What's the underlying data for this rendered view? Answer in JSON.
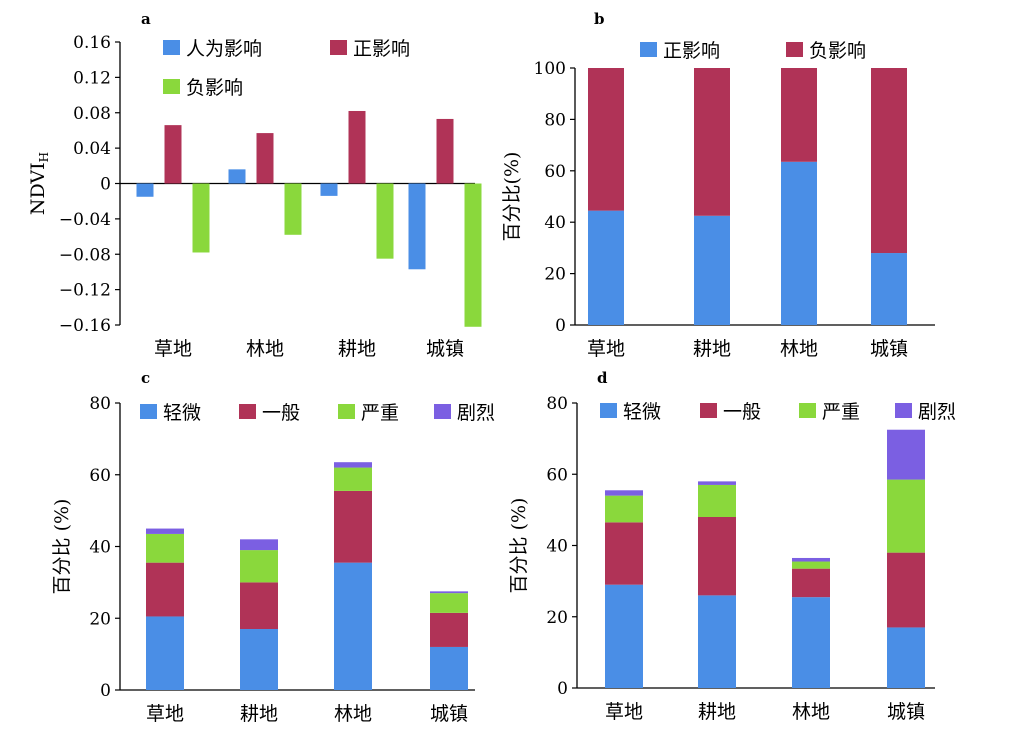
{
  "chart_data": [
    {
      "panel": "a",
      "type": "bar",
      "categories": [
        "草地",
        "林地",
        "耕地",
        "城镇"
      ],
      "series": [
        {
          "name": "人为影响",
          "color": "#4a8ee6",
          "values": [
            -0.015,
            0.016,
            -0.014,
            -0.097
          ]
        },
        {
          "name": "正影响",
          "color": "#b03357",
          "values": [
            0.066,
            0.057,
            0.082,
            0.073
          ]
        },
        {
          "name": "负影响",
          "color": "#8ad83c",
          "values": [
            -0.078,
            -0.058,
            -0.085,
            -0.162
          ]
        }
      ],
      "ylabel": "NDVI",
      "ylabel_sub": "H",
      "ylim": [
        -0.16,
        0.16
      ],
      "yticks": [
        "0.16",
        "0.12",
        "0.08",
        "0.04",
        "0",
        "−0.04",
        "−0.08",
        "−0.12",
        "−0.16"
      ],
      "ytick_values": [
        0.16,
        0.12,
        0.08,
        0.04,
        0,
        -0.04,
        -0.08,
        -0.12,
        -0.16
      ],
      "grid": false,
      "legend_position": "top"
    },
    {
      "panel": "b",
      "type": "bar",
      "stacked": true,
      "categories": [
        "草地",
        "耕地",
        "林地",
        "城镇"
      ],
      "series": [
        {
          "name": "正影响",
          "color": "#4a8ee6",
          "values": [
            44.5,
            42.5,
            63.5,
            28
          ]
        },
        {
          "name": "负影响",
          "color": "#b03357",
          "values": [
            55.5,
            57.5,
            36.5,
            72
          ]
        }
      ],
      "ylabel": "百分比(%)",
      "ylim": [
        0,
        100
      ],
      "yticks": [
        "0",
        "20",
        "40",
        "60",
        "80",
        "100"
      ],
      "ytick_values": [
        0,
        20,
        40,
        60,
        80,
        100
      ],
      "grid": false,
      "legend_position": "top"
    },
    {
      "panel": "c",
      "type": "bar",
      "stacked": true,
      "categories": [
        "草地",
        "耕地",
        "林地",
        "城镇"
      ],
      "series": [
        {
          "name": "轻微",
          "color": "#4a8ee6",
          "values": [
            20.5,
            17,
            35.5,
            12
          ]
        },
        {
          "name": "一般",
          "color": "#b03357",
          "values": [
            15,
            13,
            20,
            9.5
          ]
        },
        {
          "name": "严重",
          "color": "#8ad83c",
          "values": [
            8,
            9,
            6.5,
            5.5
          ]
        },
        {
          "name": "剧烈",
          "color": "#7b5fe2",
          "values": [
            1.5,
            3,
            1.5,
            0.5
          ]
        }
      ],
      "ylabel": "百分比 (%)",
      "ylim": [
        0,
        80
      ],
      "yticks": [
        "0",
        "20",
        "40",
        "60",
        "80"
      ],
      "ytick_values": [
        0,
        20,
        40,
        60,
        80
      ],
      "grid": false,
      "legend_position": "top"
    },
    {
      "panel": "d",
      "type": "bar",
      "stacked": true,
      "categories": [
        "草地",
        "耕地",
        "林地",
        "城镇"
      ],
      "series": [
        {
          "name": "轻微",
          "color": "#4a8ee6",
          "values": [
            29,
            26,
            25.5,
            17
          ]
        },
        {
          "name": "一般",
          "color": "#b03357",
          "values": [
            17.5,
            22,
            8,
            21
          ]
        },
        {
          "name": "严重",
          "color": "#8ad83c",
          "values": [
            7.5,
            9,
            2,
            20.5
          ]
        },
        {
          "name": "剧烈",
          "color": "#7b5fe2",
          "values": [
            1.5,
            1,
            1,
            14
          ]
        }
      ],
      "ylabel": "百分比 (%)",
      "ylim": [
        0,
        80
      ],
      "yticks": [
        "0",
        "20",
        "40",
        "60",
        "80"
      ],
      "ytick_values": [
        0,
        20,
        40,
        60,
        80
      ],
      "grid": false,
      "legend_position": "top"
    }
  ]
}
